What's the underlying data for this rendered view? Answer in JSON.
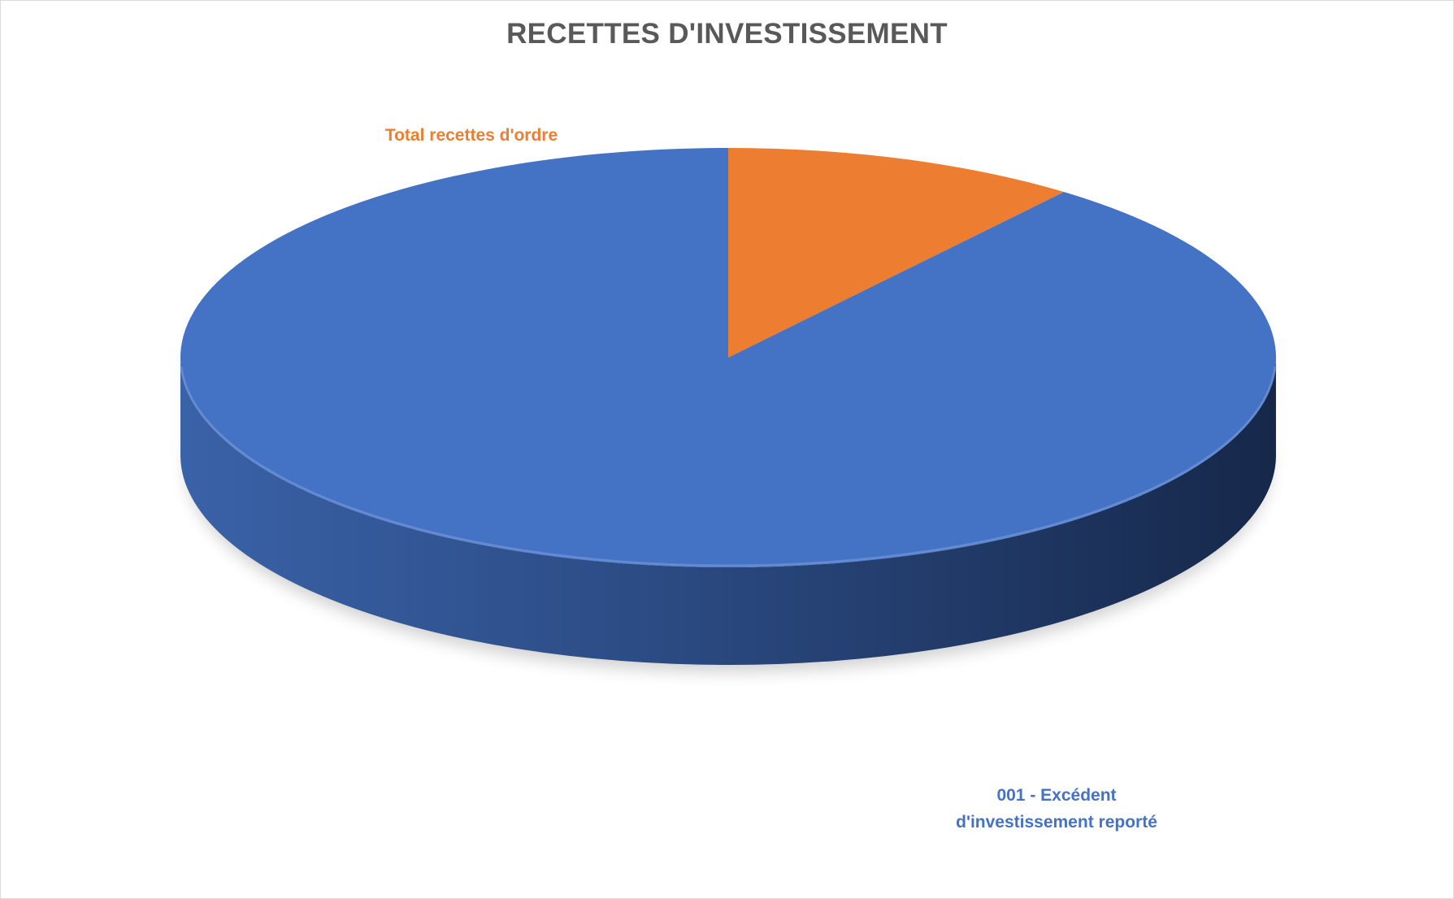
{
  "chart_data": {
    "type": "pie",
    "title": "RECETTES D'INVESTISSEMENT",
    "categories": [
      "Total recettes d'ordre",
      "001 - Excédent d'investissement reporté"
    ],
    "label_lines": [
      [
        "Total recettes d'ordre"
      ],
      [
        "001 - Excédent",
        "d'investissement reporté"
      ]
    ],
    "values": [
      10.5,
      89.5
    ],
    "colors": [
      "#ED7D31",
      "#4472C4"
    ],
    "start_angle_deg": -90,
    "legend": "none"
  }
}
